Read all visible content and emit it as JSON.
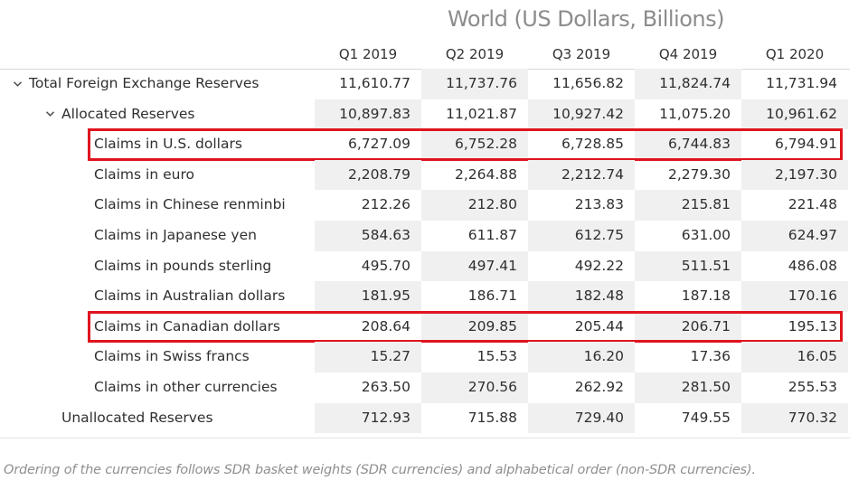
{
  "chart_data": {
    "type": "table",
    "title": "World (US Dollars, Billions)",
    "columns": [
      "Q1 2019",
      "Q2 2019",
      "Q3 2019",
      "Q4 2019",
      "Q1 2020"
    ],
    "rows": [
      {
        "label": "Total Foreign Exchange Reserves",
        "level": 0,
        "expand_icon": "chevron-down-icon",
        "values": [
          "11,610.77",
          "11,737.76",
          "11,656.82",
          "11,824.74",
          "11,731.94"
        ],
        "highlighted": false
      },
      {
        "label": "Allocated Reserves",
        "level": 1,
        "expand_icon": "chevron-down-icon",
        "values": [
          "10,897.83",
          "11,021.87",
          "10,927.42",
          "11,075.20",
          "10,961.62"
        ],
        "highlighted": false
      },
      {
        "label": "Claims in U.S. dollars",
        "level": 2,
        "values": [
          "6,727.09",
          "6,752.28",
          "6,728.85",
          "6,744.83",
          "6,794.91"
        ],
        "highlighted": true
      },
      {
        "label": "Claims in euro",
        "level": 2,
        "values": [
          "2,208.79",
          "2,264.88",
          "2,212.74",
          "2,279.30",
          "2,197.30"
        ],
        "highlighted": false
      },
      {
        "label": "Claims in Chinese renminbi",
        "level": 2,
        "values": [
          "212.26",
          "212.80",
          "213.83",
          "215.81",
          "221.48"
        ],
        "highlighted": false
      },
      {
        "label": "Claims in Japanese yen",
        "level": 2,
        "values": [
          "584.63",
          "611.87",
          "612.75",
          "631.00",
          "624.97"
        ],
        "highlighted": false
      },
      {
        "label": "Claims in pounds sterling",
        "level": 2,
        "values": [
          "495.70",
          "497.41",
          "492.22",
          "511.51",
          "486.08"
        ],
        "highlighted": false
      },
      {
        "label": "Claims in Australian dollars",
        "level": 2,
        "values": [
          "181.95",
          "186.71",
          "182.48",
          "187.18",
          "170.16"
        ],
        "highlighted": false
      },
      {
        "label": "Claims in Canadian dollars",
        "level": 2,
        "values": [
          "208.64",
          "209.85",
          "205.44",
          "206.71",
          "195.13"
        ],
        "highlighted": true
      },
      {
        "label": "Claims in Swiss francs",
        "level": 2,
        "values": [
          "15.27",
          "15.53",
          "16.20",
          "17.36",
          "16.05"
        ],
        "highlighted": false
      },
      {
        "label": "Claims in other currencies",
        "level": 2,
        "values": [
          "263.50",
          "270.56",
          "262.92",
          "281.50",
          "255.53"
        ],
        "highlighted": false
      },
      {
        "label": "Unallocated Reserves",
        "level": 1,
        "values": [
          "712.93",
          "715.88",
          "729.40",
          "749.55",
          "770.32"
        ],
        "highlighted": false
      }
    ],
    "highlight_color": "#e0141e",
    "shade_color": "#f0f0f0"
  },
  "footnote": "Ordering of the currencies follows SDR basket weights (SDR currencies) and alphabetical order (non-SDR currencies)."
}
